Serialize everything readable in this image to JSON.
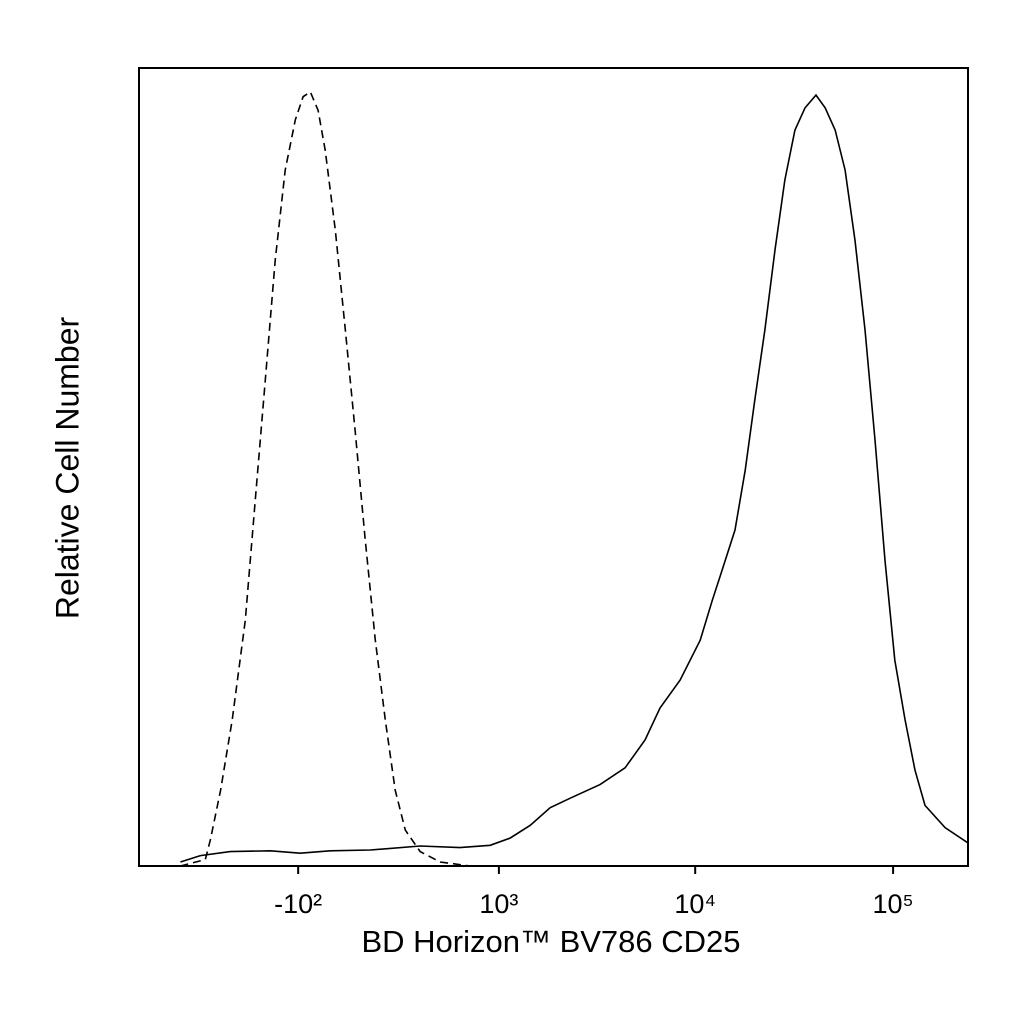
{
  "chart_data": {
    "type": "line",
    "x_label": "BD Horizon™ BV786 CD25",
    "y_label": "Relative Cell Number",
    "x_scale": "biexponential",
    "xlim": [
      -1250,
      239000
    ],
    "ylim": [
      0,
      100
    ],
    "xticks": [
      {
        "value": -100,
        "label": "-10²"
      },
      {
        "value": 1000,
        "label": "10³"
      },
      {
        "value": 10000,
        "label": "10⁴"
      },
      {
        "value": 100000,
        "label": "10⁵"
      }
    ],
    "series": [
      {
        "color": "#000000",
        "style": "dashed",
        "x": [
          -757,
          -552,
          -516,
          -450,
          -382,
          -314,
          -267,
          -224,
          -184,
          -146,
          -110,
          -83,
          -59,
          -33,
          -10,
          23,
          56,
          89,
          124,
          161,
          200,
          241,
          286,
          360,
          476,
          703
        ],
        "values": [
          0,
          0.8,
          3.3,
          9.5,
          18.3,
          30.8,
          45.9,
          60.9,
          75.9,
          87.2,
          93.5,
          96.4,
          97,
          94.7,
          89.7,
          79.7,
          67.2,
          54.6,
          40.9,
          28.3,
          18.3,
          9.5,
          4.5,
          1.8,
          0.5,
          0
        ]
      },
      {
        "color": "#000000",
        "style": "solid",
        "x": [
          -757,
          -588,
          -393,
          -203,
          -93,
          6,
          142,
          360,
          617,
          900,
          1145,
          1453,
          1840,
          2327,
          3300,
          4420,
          5580,
          6640,
          8390,
          10600,
          12200,
          13700,
          15900,
          17900,
          20000,
          22500,
          25300,
          28400,
          31900,
          35900,
          40800,
          45400,
          51000,
          57200,
          64200,
          72100,
          81000,
          91000,
          102000,
          115000,
          129000,
          145000,
          183000,
          239000
        ],
        "values": [
          0.5,
          1.3,
          1.8,
          1.9,
          1.6,
          1.9,
          2.0,
          2.5,
          2.3,
          2.6,
          3.5,
          5.1,
          7.3,
          8.5,
          10.2,
          12.3,
          15.8,
          19.8,
          23.3,
          28.3,
          33.3,
          37.1,
          42.1,
          49.6,
          58.4,
          67.2,
          77.2,
          86.0,
          92.2,
          95.0,
          96.6,
          95.0,
          92.2,
          87.2,
          78.4,
          67.2,
          53.4,
          38.3,
          25.8,
          18.3,
          12.0,
          7.6,
          4.8,
          2.9
        ]
      }
    ]
  }
}
